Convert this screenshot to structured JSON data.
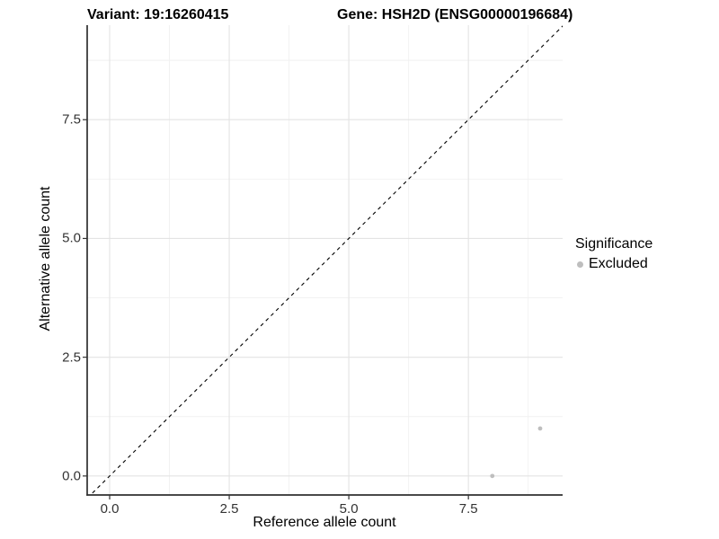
{
  "chart_data": {
    "type": "scatter",
    "title_variant": "Variant: 19:16260415",
    "title_gene": "Gene: HSH2D (ENSG00000196684)",
    "xlabel": "Reference allele count",
    "ylabel": "Alternative allele count",
    "x_ticks": {
      "values": [
        0,
        2.5,
        5,
        7.5
      ],
      "labels": [
        "0.0",
        "2.5",
        "5.0",
        "7.5"
      ]
    },
    "y_ticks": {
      "values": [
        0,
        2.5,
        5,
        7.5
      ],
      "labels": [
        "0.0",
        "2.5",
        "5.0",
        "7.5"
      ]
    },
    "x_minor": [
      1.25,
      3.75,
      6.25,
      8.75
    ],
    "y_minor": [
      1.25,
      3.75,
      6.25,
      8.75
    ],
    "xlim": [
      -0.47,
      9.47
    ],
    "ylim": [
      -0.4,
      9.49
    ],
    "grid": true,
    "legend_position": "right",
    "legend_title": "Significance",
    "series": [
      {
        "name": "Excluded",
        "color": "#bebebe",
        "points": [
          {
            "x": 8,
            "y": 0
          },
          {
            "x": 9,
            "y": 1
          }
        ]
      }
    ],
    "reference_line": {
      "kind": "identity",
      "slope": 1,
      "intercept": 0,
      "style": "dashed",
      "color": "#000000"
    }
  },
  "colors": {
    "background": "#ffffff",
    "panel_background": "#ffffff",
    "grid_major": "#e3e3e3",
    "grid_minor": "#f1f1f1",
    "axis_line": "#2f2f2f",
    "tick_mark": "#333333",
    "tick_text": "#333333",
    "point": "#bebebe"
  }
}
